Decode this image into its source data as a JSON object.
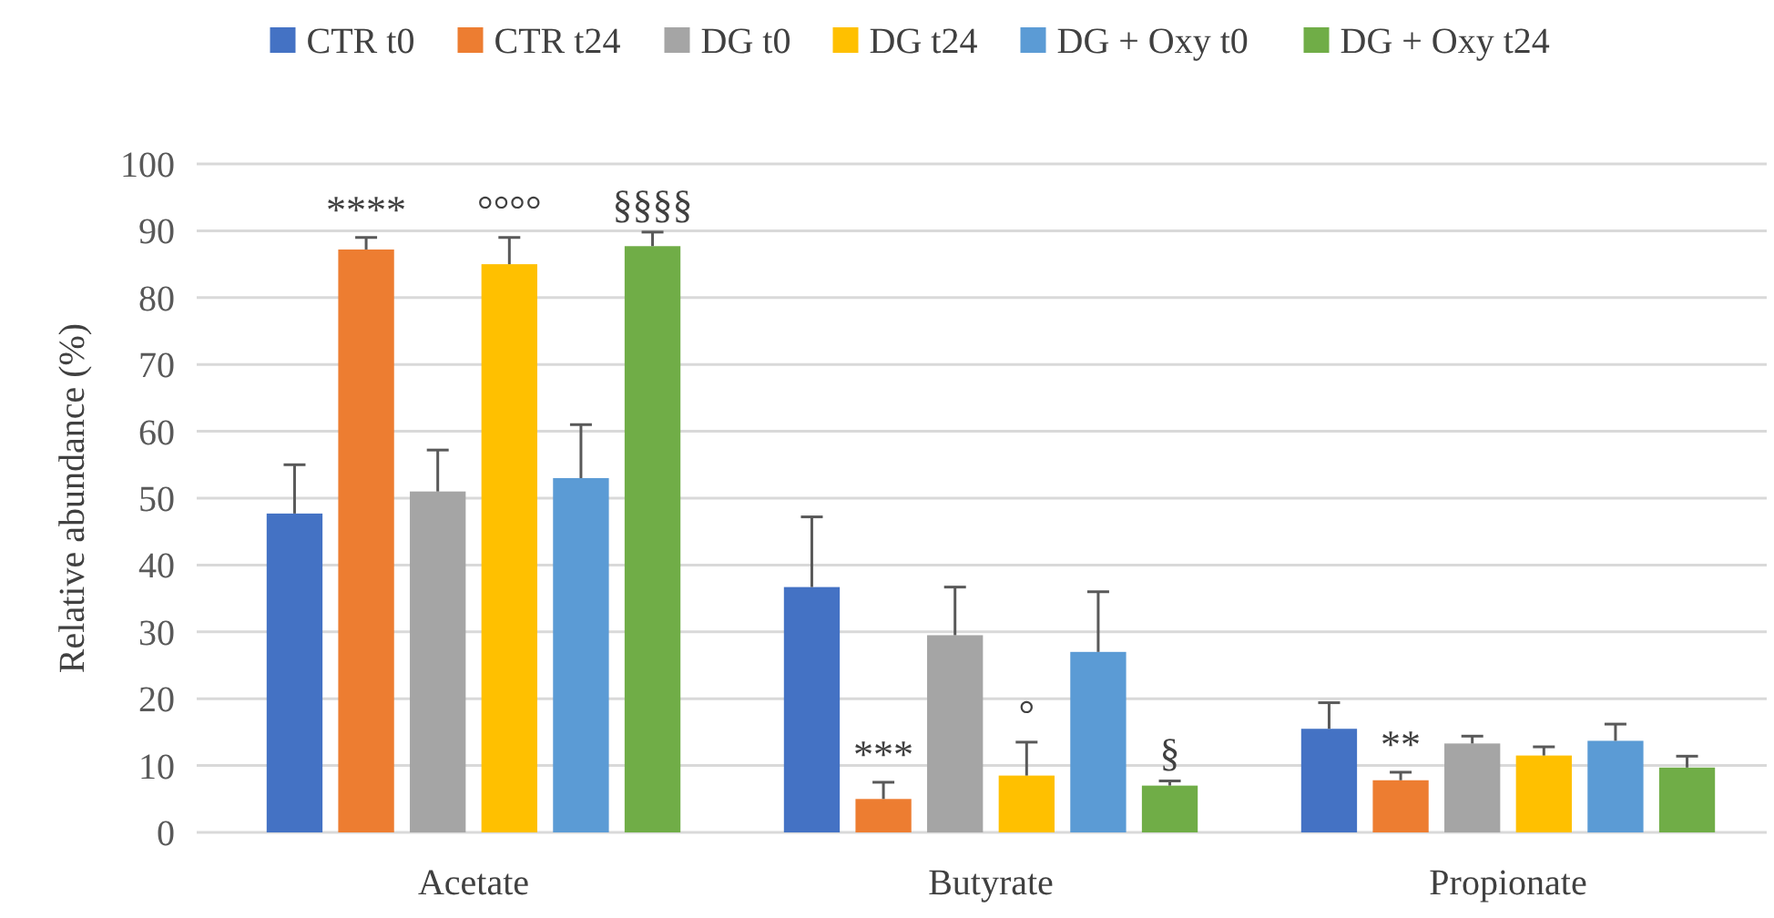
{
  "chart_data": {
    "type": "bar",
    "ylabel": "Relative abundance (%)",
    "categories": [
      "Acetate",
      "Butyrate",
      "Propionate"
    ],
    "series": [
      {
        "name": "CTR t0",
        "color": "#4472c4",
        "values": [
          47.7,
          36.7,
          15.5
        ],
        "errors": [
          [
            47.7,
            55
          ],
          [
            36.7,
            47.2
          ],
          [
            15.5,
            19.4
          ]
        ]
      },
      {
        "name": "CTR t24",
        "color": "#ed7d31",
        "values": [
          87.2,
          5,
          7.8
        ],
        "errors": [
          [
            87.2,
            89
          ],
          [
            5,
            7.5
          ],
          [
            7.8,
            9
          ]
        ],
        "value_labels": [
          "****",
          "***",
          "**"
        ]
      },
      {
        "name": "DG t0",
        "color": "#a5a5a5",
        "values": [
          51,
          29.5,
          13.3
        ],
        "errors": [
          [
            51,
            57.2
          ],
          [
            29.5,
            36.7
          ],
          [
            13.3,
            14.4
          ]
        ]
      },
      {
        "name": "DG t24",
        "color": "#ffc000",
        "values": [
          85,
          8.5,
          11.5
        ],
        "errors": [
          [
            85,
            89
          ],
          [
            8.5,
            13.5
          ],
          [
            11.5,
            12.8
          ]
        ],
        "value_labels": [
          "°°°°",
          "°",
          null
        ]
      },
      {
        "name": "DG + Oxy t0",
        "color": "#5b9bd5",
        "values": [
          53,
          27,
          13.7
        ],
        "errors": [
          [
            53,
            61
          ],
          [
            27,
            36
          ],
          [
            13.7,
            16.2
          ]
        ]
      },
      {
        "name": "DG + Oxy t24",
        "color": "#70ad47",
        "values": [
          87.7,
          7,
          9.7
        ],
        "errors": [
          [
            87.7,
            89.8
          ],
          [
            7,
            7.7
          ],
          [
            9.7,
            11.4
          ]
        ],
        "value_labels": [
          "§§§§",
          "§",
          null
        ]
      }
    ],
    "ylim": [
      0,
      100
    ],
    "yticks": [
      0,
      10,
      20,
      30,
      40,
      50,
      60,
      70,
      80,
      90,
      100
    ],
    "grid": "y",
    "legend": "top"
  }
}
